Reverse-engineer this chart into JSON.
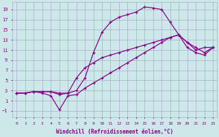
{
  "bg_color": "#cce8e8",
  "grid_color": "#aaaacc",
  "line_color": "#880088",
  "marker": "+",
  "xlabel": "Windchill (Refroidissement éolien,°C)",
  "xlabel_color": "#880088",
  "xlim": [
    -0.5,
    23.5
  ],
  "ylim": [
    -2.2,
    20.5
  ],
  "xticks": [
    0,
    1,
    2,
    3,
    4,
    5,
    6,
    7,
    8,
    9,
    10,
    11,
    12,
    13,
    14,
    15,
    16,
    17,
    18,
    19,
    20,
    21,
    22,
    23
  ],
  "yticks": [
    -1,
    1,
    3,
    5,
    7,
    9,
    11,
    13,
    15,
    17,
    19
  ],
  "curve1_x": [
    0,
    1,
    2,
    3,
    4,
    5,
    6,
    7,
    8,
    9,
    10,
    11,
    12,
    13,
    14,
    15,
    16,
    17,
    18,
    19,
    20,
    21,
    22,
    23
  ],
  "curve1_y": [
    2.5,
    2.5,
    2.8,
    2.8,
    2.8,
    2.5,
    2.5,
    3.0,
    5.5,
    10.5,
    14.5,
    16.5,
    17.5,
    18.0,
    18.5,
    19.5,
    19.3,
    19.0,
    16.5,
    14.0,
    12.5,
    11.0,
    11.5,
    11.5
  ],
  "curve2_x": [
    0,
    1,
    2,
    3,
    4,
    5,
    6,
    7,
    8,
    9,
    10,
    11,
    12,
    13,
    14,
    15,
    16,
    17,
    18,
    19,
    20,
    21,
    22,
    23
  ],
  "curve2_y": [
    2.5,
    2.5,
    2.8,
    2.5,
    2.0,
    -0.8,
    2.0,
    2.2,
    3.5,
    4.5,
    5.5,
    6.5,
    7.5,
    8.5,
    9.5,
    10.5,
    11.5,
    12.5,
    13.5,
    14.0,
    11.5,
    10.5,
    10.0,
    11.5
  ],
  "curve3_x": [
    0,
    1,
    2,
    3,
    4,
    5,
    6,
    7,
    8,
    9,
    10,
    11,
    12,
    13,
    14,
    15,
    16,
    17,
    18,
    19,
    20,
    21,
    22,
    23
  ],
  "curve3_y": [
    2.5,
    2.5,
    2.8,
    2.8,
    2.8,
    2.2,
    2.5,
    5.5,
    7.5,
    8.5,
    9.5,
    10.0,
    10.5,
    11.0,
    11.5,
    12.0,
    12.5,
    13.0,
    13.5,
    14.0,
    12.5,
    11.5,
    10.5,
    11.5
  ]
}
